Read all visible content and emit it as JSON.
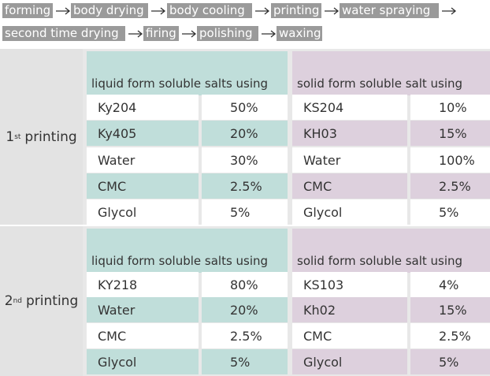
{
  "flow": {
    "steps": [
      "forming",
      "body drying",
      "body cooling",
      "printing",
      "water spraying",
      "second time drying",
      "firing",
      "polishing",
      "waxing"
    ]
  },
  "table": {
    "sections": [
      {
        "label": {
          "num": "1",
          "sup": "st",
          "text": "printing"
        },
        "left_header": "liquid form soluble salts using",
        "right_header": "solid form soluble salt using",
        "rows": [
          [
            "Ky204",
            "50%",
            "KS204",
            "10%"
          ],
          [
            "Ky405",
            "20%",
            "KH03",
            "15%"
          ],
          [
            "Water",
            "30%",
            "Water",
            "100%"
          ],
          [
            "CMC",
            "2.5%",
            "CMC",
            "2.5%"
          ],
          [
            "Glycol",
            "5%",
            "Glycol",
            "5%"
          ]
        ]
      },
      {
        "label": {
          "num": "2",
          "sup": "nd",
          "text": "printing"
        },
        "left_header": "liquid form soluble salts using",
        "right_header": "solid form soluble salt using",
        "rows": [
          [
            "KY218",
            "80%",
            "KS103",
            "4%"
          ],
          [
            "Water",
            "20%",
            "Kh02",
            "15%"
          ],
          [
            "CMC",
            "2.5%",
            "CMC",
            "2.5%"
          ],
          [
            "Glycol",
            "5%",
            "Glycol",
            "5%"
          ]
        ]
      }
    ]
  }
}
